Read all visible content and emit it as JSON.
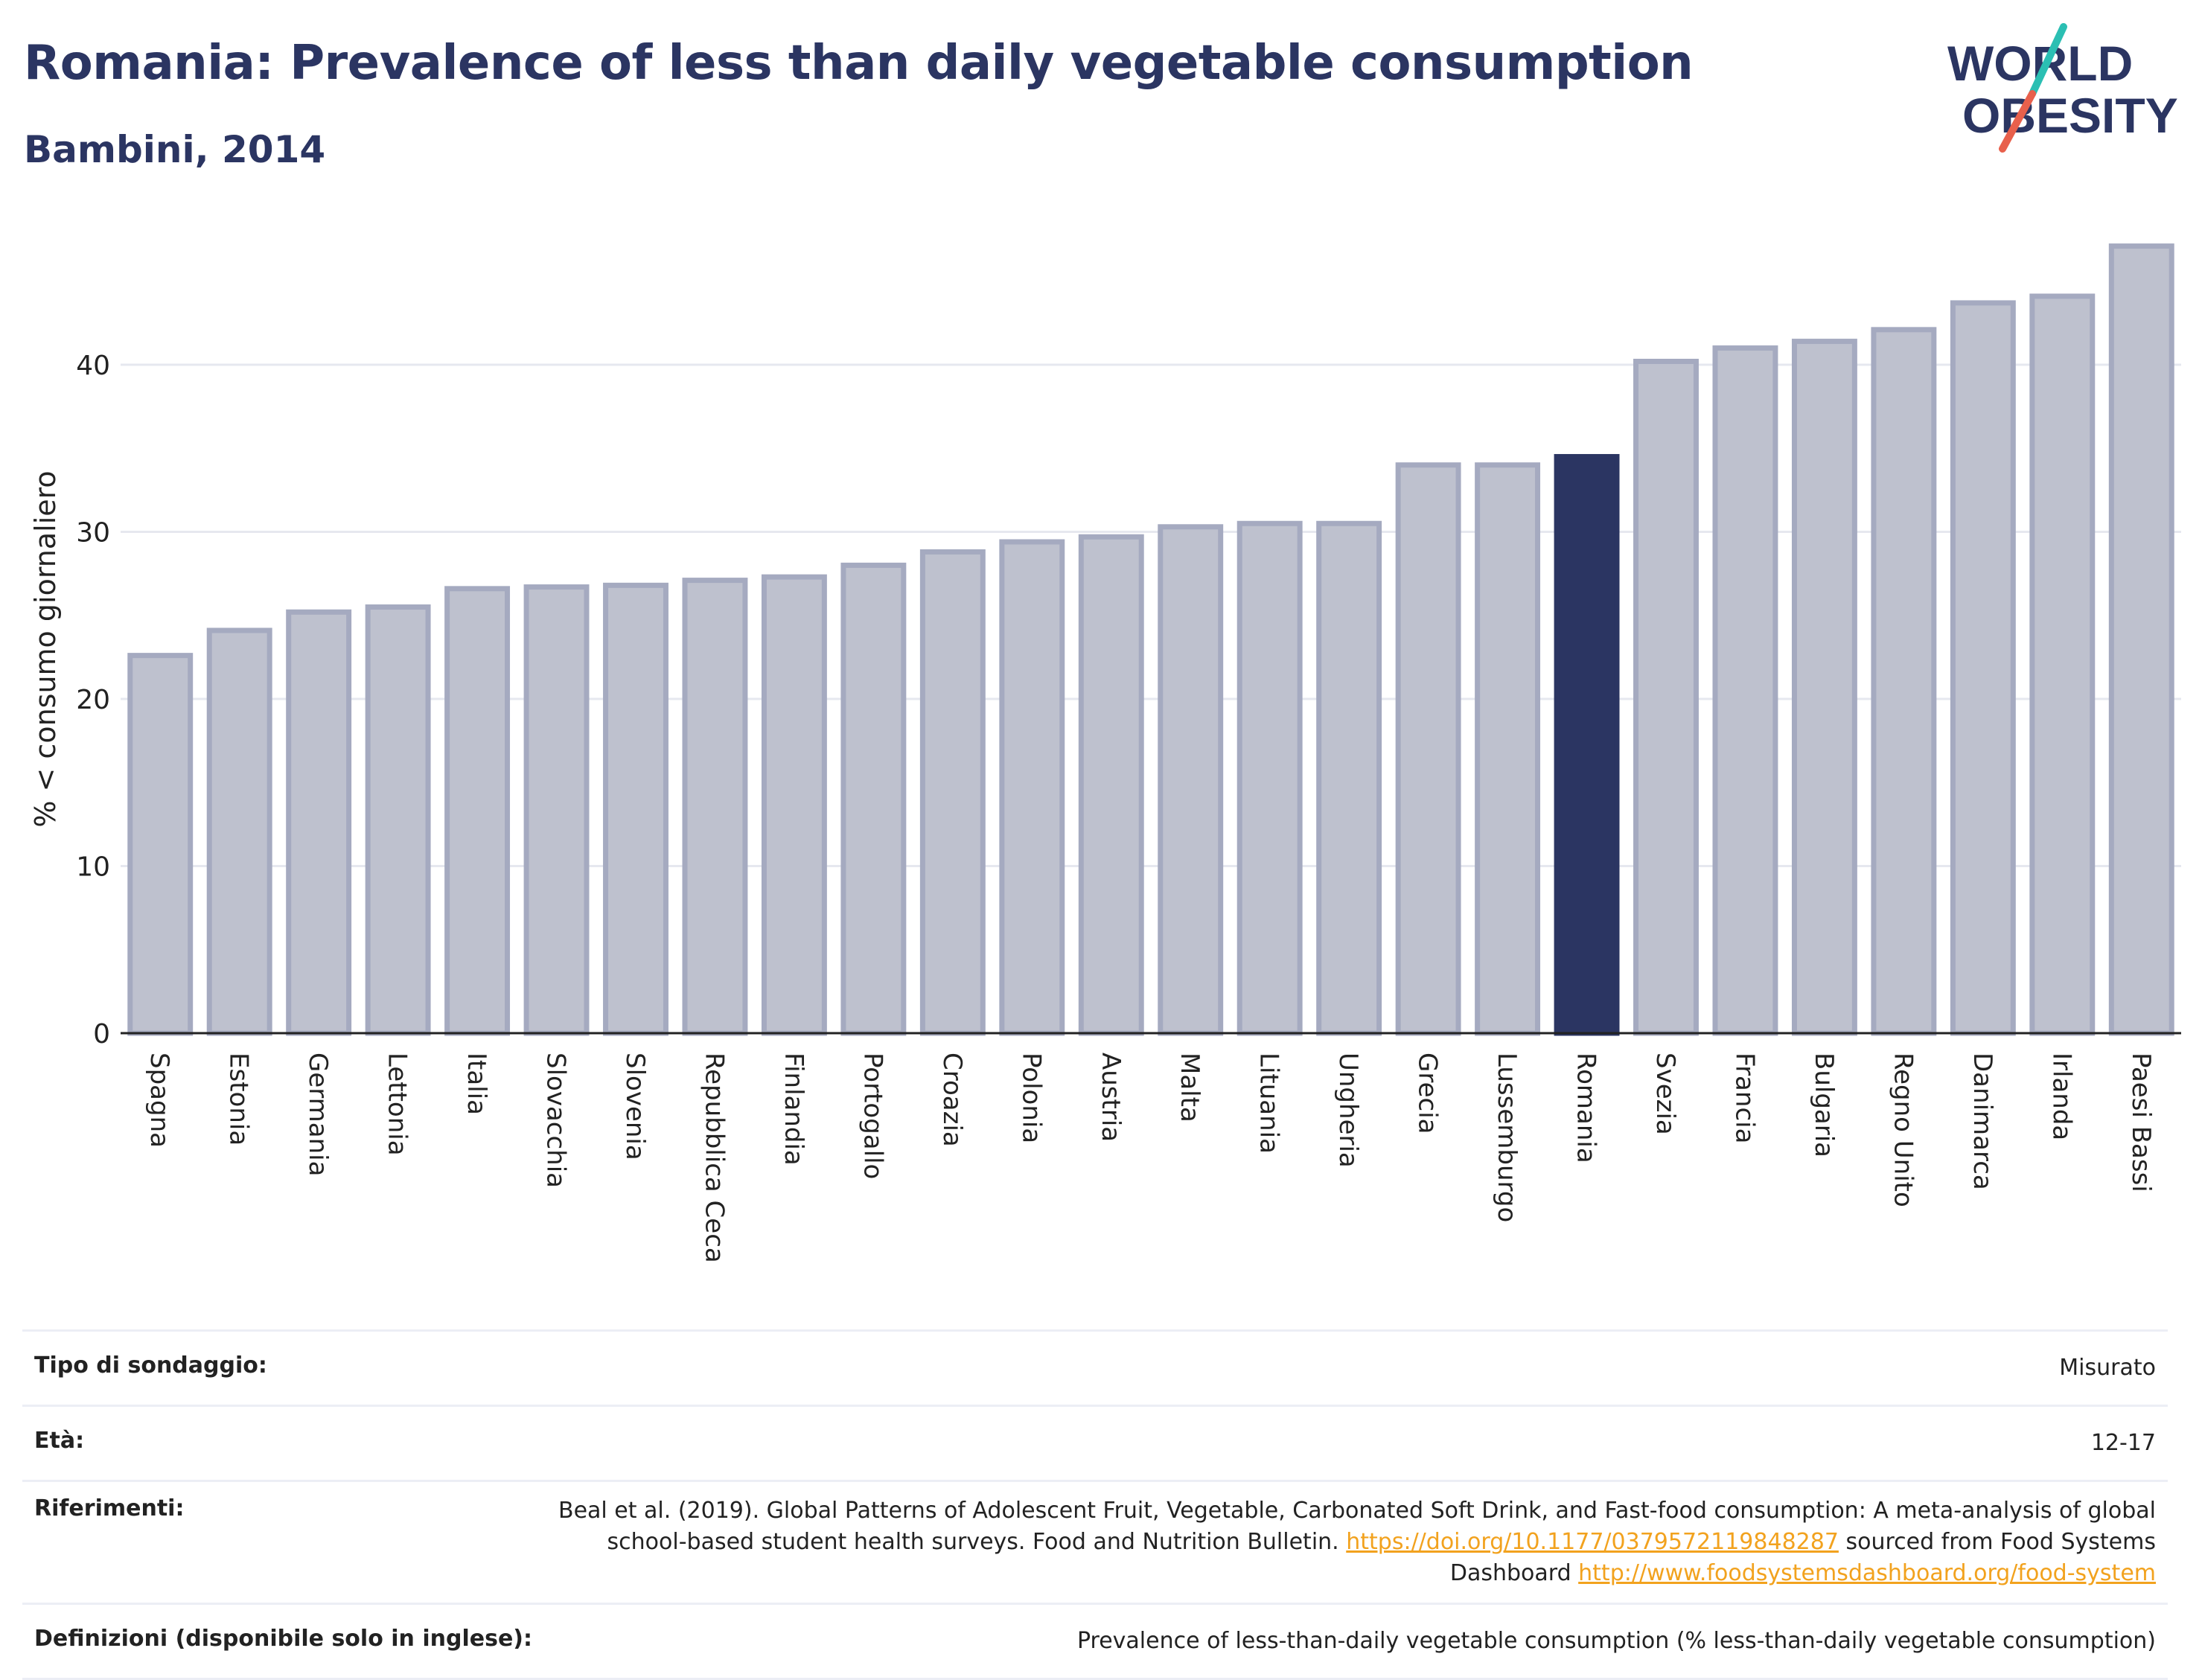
{
  "header": {
    "title": "Romania: Prevalence of less than daily vegetable consumption",
    "subtitle": "Bambini, 2014",
    "logo_text_line1": "WORLD",
    "logo_text_line2": "OBESITY"
  },
  "chart_data": {
    "type": "bar",
    "title": "Romania: Prevalence of less than daily vegetable consumption",
    "subtitle": "Bambini, 2014",
    "xlabel": "",
    "ylabel": "% < consumo giornaliero",
    "ylim": [
      0,
      48.5
    ],
    "yticks": [
      0,
      10,
      20,
      30,
      40
    ],
    "grid": true,
    "highlight": "Romania",
    "colors": {
      "default_fill": "#bec1ce",
      "default_stroke": "#a5aac0",
      "highlight_fill": "#2b3562",
      "highlight_stroke": "#2b3562",
      "axis": "#222222",
      "grid": "#e6e8ef"
    },
    "categories": [
      "Spagna",
      "Estonia",
      "Germania",
      "Lettonia",
      "Italia",
      "Slovacchia",
      "Slovenia",
      "Repubblica Ceca",
      "Finlandia",
      "Portogallo",
      "Croazia",
      "Polonia",
      "Austria",
      "Malta",
      "Lituania",
      "Ungheria",
      "Grecia",
      "Lussemburgo",
      "Romania",
      "Svezia",
      "Francia",
      "Bulgaria",
      "Regno Unito",
      "Danimarca",
      "Irlanda",
      "Paesi Bassi"
    ],
    "values": [
      22.6,
      24.1,
      25.2,
      25.5,
      26.6,
      26.7,
      26.8,
      27.1,
      27.3,
      28.0,
      28.8,
      29.4,
      29.7,
      30.3,
      30.5,
      30.5,
      34.0,
      34.0,
      34.5,
      40.2,
      41.0,
      41.4,
      42.1,
      43.7,
      44.1,
      47.1
    ]
  },
  "info_table": [
    {
      "label": "Tipo di sondaggio:",
      "value": "Misurato"
    },
    {
      "label": "Età:",
      "value": "12-17"
    },
    {
      "label": "Riferimenti:",
      "value_pre": "Beal et al. (2019). Global Patterns of Adolescent Fruit, Vegetable, Carbonated Soft Drink, and Fast-food consumption: A meta-analysis of global school-based student health surveys. Food and Nutrition Bulletin. ",
      "link1": "https://doi.org/10.1177/0379572119848287",
      "value_mid": " sourced from Food Systems Dashboard ",
      "link2": "http://www.foodsystemsdashboard.org/food-system"
    },
    {
      "label": "Definizioni (disponibile solo in inglese):",
      "value": "Prevalence of less-than-daily vegetable consumption (% less-than-daily vegetable consumption)"
    }
  ]
}
